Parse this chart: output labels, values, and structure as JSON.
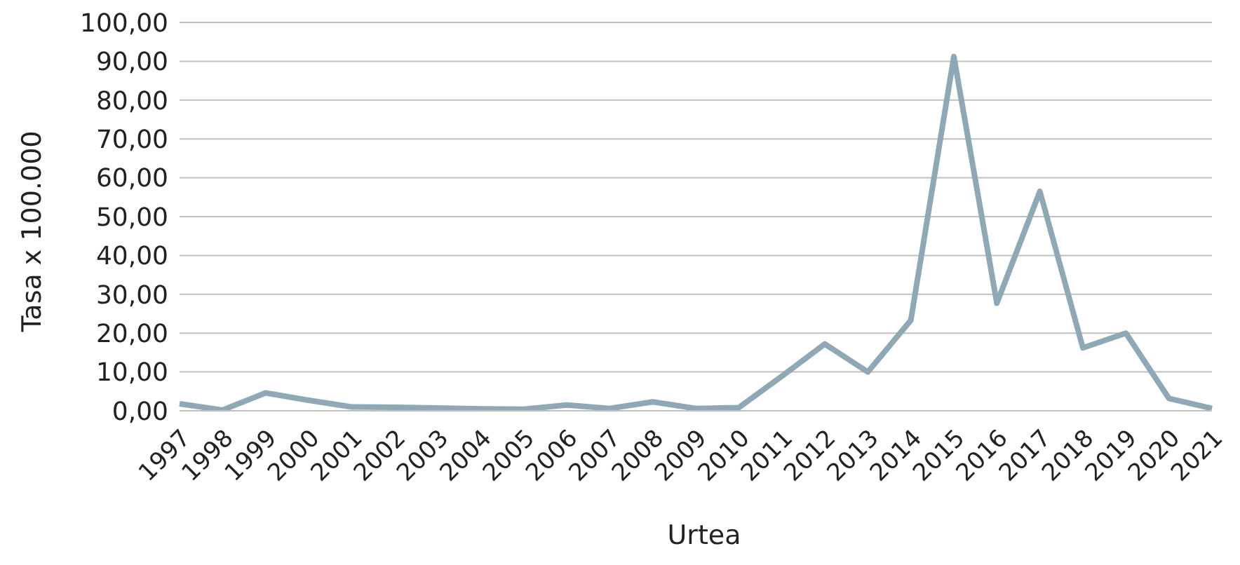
{
  "chart_data": {
    "type": "line",
    "xlabel": "Urtea",
    "ylabel": "Tasa x 100.000",
    "categories": [
      "1997",
      "1998",
      "1999",
      "2000",
      "2001",
      "2002",
      "2003",
      "2004",
      "2005",
      "2006",
      "2007",
      "2008",
      "2009",
      "2010",
      "2011",
      "2012",
      "2013",
      "2014",
      "2015",
      "2016",
      "2017",
      "2018",
      "2019",
      "2020",
      "2021"
    ],
    "series": [
      {
        "color": "#8fa8b5",
        "values": [
          1.8,
          0.2,
          4.6,
          2.7,
          1.0,
          0.9,
          0.7,
          0.5,
          0.4,
          1.5,
          0.6,
          2.3,
          0.6,
          0.8,
          8.9,
          17.2,
          10.0,
          23.3,
          91.2,
          27.7,
          56.5,
          16.2,
          20.0,
          3.2,
          0.6
        ]
      }
    ],
    "ylim": [
      0,
      100
    ],
    "yticks": [
      {
        "value": 0,
        "label": "0,00"
      },
      {
        "value": 10,
        "label": "10,00"
      },
      {
        "value": 20,
        "label": "20,00"
      },
      {
        "value": 30,
        "label": "30,00"
      },
      {
        "value": 40,
        "label": "40,00"
      },
      {
        "value": 50,
        "label": "50,00"
      },
      {
        "value": 60,
        "label": "60,00"
      },
      {
        "value": 70,
        "label": "70,00"
      },
      {
        "value": 80,
        "label": "80,00"
      },
      {
        "value": 90,
        "label": "90,00"
      },
      {
        "value": 100,
        "label": "100,00"
      }
    ],
    "grid": "y",
    "marker": "none",
    "line_style": "solid"
  }
}
